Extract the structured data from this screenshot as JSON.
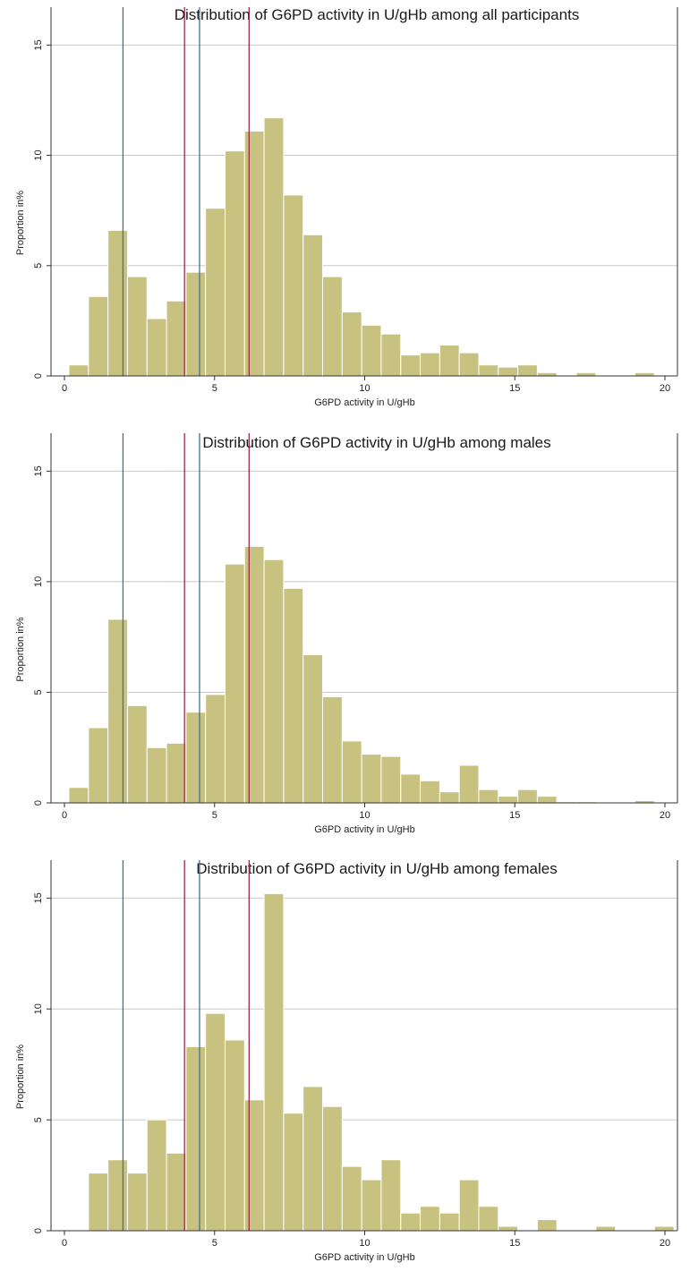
{
  "colors": {
    "bar_fill": "#c8c281",
    "bar_stroke": "#ffffff",
    "grid": "#c8c8c8",
    "axis": "#333333",
    "line_blue": "#4a6f93",
    "line_red": "#9c2a4a"
  },
  "chart_data": [
    {
      "type": "bar",
      "title": "Distribution of G6PD activity in U/gHb among all participants",
      "xlabel": "G6PD activity in U/gHb",
      "ylabel": "Proportion in%",
      "xlim": [
        0,
        20
      ],
      "ylim": [
        0,
        15.5
      ],
      "xticks": [
        "0",
        "5",
        "10",
        "15",
        "20"
      ],
      "yticks": [
        "0",
        "5",
        "10",
        "15"
      ],
      "grid": true,
      "bin_start": 0.15,
      "bin_width": 0.65,
      "values": [
        0.5,
        3.6,
        6.6,
        4.5,
        2.6,
        3.4,
        4.7,
        7.6,
        10.2,
        11.1,
        11.7,
        8.2,
        6.4,
        4.5,
        2.9,
        2.3,
        1.9,
        0.95,
        1.05,
        1.4,
        1.05,
        0.5,
        0.4,
        0.5,
        0.15,
        0.0,
        0.15,
        0.0,
        0.0,
        0.15
      ],
      "vlines": [
        {
          "x": 1.95,
          "color": "blue"
        },
        {
          "x": 4.0,
          "color": "red"
        },
        {
          "x": 4.5,
          "color": "blue"
        },
        {
          "x": 6.15,
          "color": "red"
        }
      ]
    },
    {
      "type": "bar",
      "title": "Distribution of G6PD activity in U/gHb among males",
      "xlabel": "G6PD activity in U/gHb",
      "ylabel": "Proportion in%",
      "xlim": [
        0,
        20
      ],
      "ylim": [
        0,
        15.5
      ],
      "xticks": [
        "0",
        "5",
        "10",
        "15",
        "20"
      ],
      "yticks": [
        "0",
        "5",
        "10",
        "15"
      ],
      "grid": true,
      "bin_start": 0.15,
      "bin_width": 0.65,
      "values": [
        0.7,
        3.4,
        8.3,
        4.4,
        2.5,
        2.7,
        4.1,
        4.9,
        10.8,
        11.6,
        11.0,
        9.7,
        6.7,
        4.8,
        2.8,
        2.2,
        2.1,
        1.3,
        1.0,
        0.5,
        1.7,
        0.6,
        0.3,
        0.6,
        0.3,
        0.05,
        0.05,
        0.0,
        0.0,
        0.1
      ],
      "vlines": [
        {
          "x": 1.95,
          "color": "blue"
        },
        {
          "x": 4.0,
          "color": "red"
        },
        {
          "x": 4.5,
          "color": "blue"
        },
        {
          "x": 6.15,
          "color": "red"
        }
      ]
    },
    {
      "type": "bar",
      "title": "Distribution of G6PD activity in U/gHb among females",
      "xlabel": "G6PD activity in U/gHb",
      "ylabel": "Proportion in%",
      "xlim": [
        0,
        20
      ],
      "ylim": [
        0,
        15.5
      ],
      "xticks": [
        "0",
        "5",
        "10",
        "15",
        "20"
      ],
      "yticks": [
        "0",
        "5",
        "10",
        "15"
      ],
      "grid": true,
      "bin_start": 0.15,
      "bin_width": 0.65,
      "values": [
        0.0,
        2.6,
        3.2,
        2.6,
        5.0,
        3.5,
        8.3,
        9.8,
        8.6,
        5.9,
        15.2,
        5.3,
        6.5,
        5.6,
        2.9,
        2.3,
        3.2,
        0.8,
        1.1,
        0.8,
        2.3,
        1.1,
        0.2,
        0.0,
        0.5,
        0.0,
        0.0,
        0.2,
        0.0,
        0.0,
        0.2
      ],
      "vlines": [
        {
          "x": 1.95,
          "color": "blue"
        },
        {
          "x": 4.0,
          "color": "red"
        },
        {
          "x": 4.5,
          "color": "blue"
        },
        {
          "x": 6.15,
          "color": "red"
        }
      ]
    }
  ]
}
